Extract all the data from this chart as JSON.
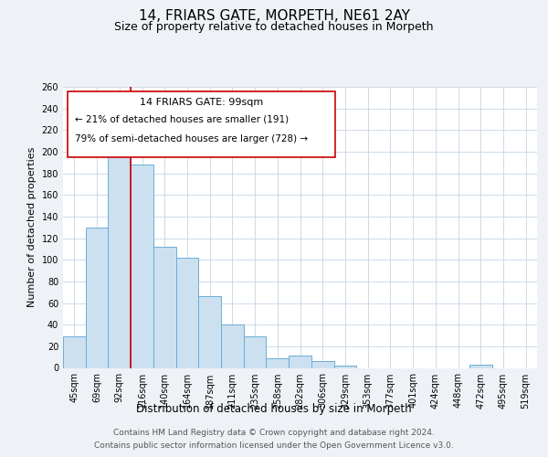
{
  "title": "14, FRIARS GATE, MORPETH, NE61 2AY",
  "subtitle": "Size of property relative to detached houses in Morpeth",
  "xlabel": "Distribution of detached houses by size in Morpeth",
  "ylabel": "Number of detached properties",
  "categories": [
    "45sqm",
    "69sqm",
    "92sqm",
    "116sqm",
    "140sqm",
    "164sqm",
    "187sqm",
    "211sqm",
    "235sqm",
    "258sqm",
    "282sqm",
    "306sqm",
    "329sqm",
    "353sqm",
    "377sqm",
    "401sqm",
    "424sqm",
    "448sqm",
    "472sqm",
    "495sqm",
    "519sqm"
  ],
  "values": [
    29,
    130,
    204,
    188,
    112,
    102,
    66,
    40,
    29,
    9,
    11,
    6,
    2,
    0,
    0,
    0,
    0,
    0,
    3,
    0,
    0
  ],
  "bar_color": "#cce0f0",
  "bar_edge_color": "#6aaed6",
  "vline_x": 2.5,
  "vline_color": "#cc0000",
  "ylim": [
    0,
    260
  ],
  "yticks": [
    0,
    20,
    40,
    60,
    80,
    100,
    120,
    140,
    160,
    180,
    200,
    220,
    240,
    260
  ],
  "annotation_title": "14 FRIARS GATE: 99sqm",
  "annotation_line1": "← 21% of detached houses are smaller (191)",
  "annotation_line2": "79% of semi-detached houses are larger (728) →",
  "annotation_box_color": "#ffffff",
  "annotation_box_edge": "#cc0000",
  "footer_line1": "Contains HM Land Registry data © Crown copyright and database right 2024.",
  "footer_line2": "Contains public sector information licensed under the Open Government Licence v3.0.",
  "background_color": "#eef2f7",
  "plot_bg_color": "#ffffff",
  "grid_color": "#c5d5e5",
  "title_fontsize": 11,
  "subtitle_fontsize": 9,
  "xlabel_fontsize": 8.5,
  "ylabel_fontsize": 8,
  "tick_fontsize": 7,
  "footer_fontsize": 6.5,
  "annotation_fontsize": 8
}
